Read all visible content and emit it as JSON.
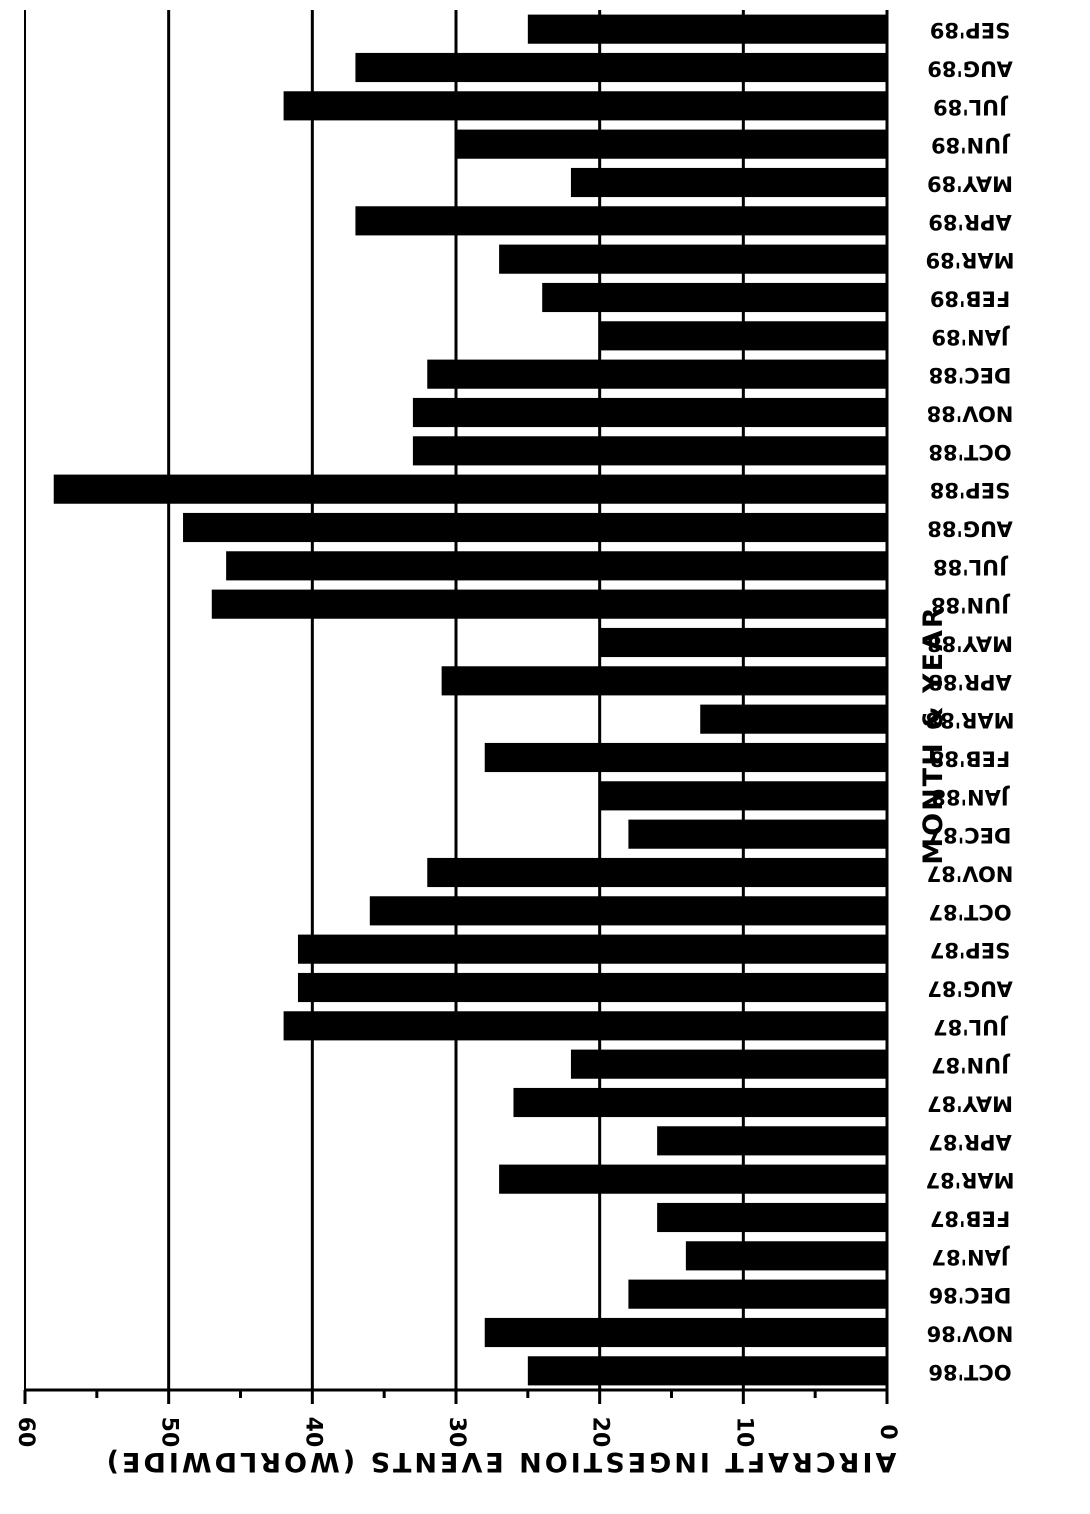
{
  "chart_data": {
    "type": "bar",
    "orientation": "horizontal",
    "xlabel": "MONTH & YEAR",
    "ylabel": "AIRCRAFT INGESTION EVENTS (WORLDWIDE)",
    "ylim": [
      0,
      60
    ],
    "ticks": [
      "0",
      "10",
      "20",
      "30",
      "40",
      "50",
      "60"
    ],
    "grid": true,
    "categories": [
      "OCT'86",
      "NOV'86",
      "DEC'86",
      "JAN'87",
      "FEB'87",
      "MAR'87",
      "APR'87",
      "MAY'87",
      "JUN'87",
      "JUL'87",
      "AUG'87",
      "SEP'87",
      "OCT'87",
      "NOV'87",
      "DEC'87",
      "JAN'88",
      "FEB'88",
      "MAR'88",
      "APR'88",
      "MAY'88",
      "JUN'88",
      "JUL'88",
      "AUG'88",
      "SEP'88",
      "OCT'88",
      "NOV'88",
      "DEC'88",
      "JAN'89",
      "FEB'89",
      "MAR'89",
      "APR'89",
      "MAY'89",
      "JUN'89",
      "JUL'89",
      "AUG'89",
      "SEP'89"
    ],
    "values": [
      25,
      28,
      18,
      14,
      16,
      27,
      16,
      26,
      22,
      42,
      41,
      41,
      36,
      32,
      18,
      20,
      28,
      13,
      31,
      20,
      47,
      46,
      49,
      58,
      33,
      33,
      32,
      20,
      24,
      27,
      37,
      22,
      30,
      42,
      37,
      25
    ],
    "bar_color": "#000000"
  }
}
